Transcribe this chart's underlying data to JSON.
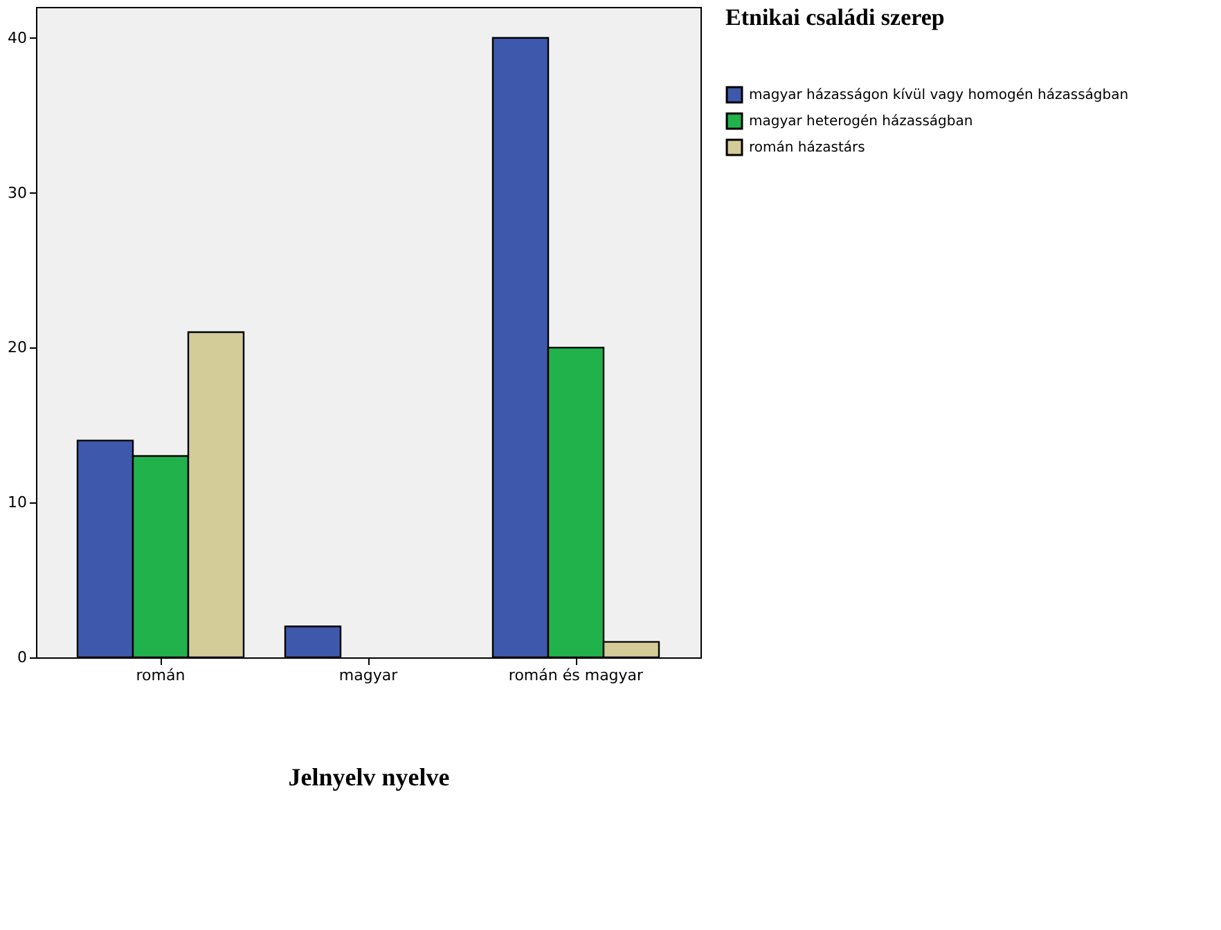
{
  "chart_data": {
    "type": "bar",
    "xlabel": "Jelnyelv nyelve",
    "legend_title": "Etnikai családi szerep",
    "categories": [
      "román",
      "magyar",
      "román és magyar"
    ],
    "series": [
      {
        "name": "magyar házasságon kívül vagy homogén házasságban",
        "color": "#3e58ac",
        "values": [
          14,
          2,
          40
        ]
      },
      {
        "name": "magyar heterogén házasságban",
        "color": "#22b24c",
        "values": [
          13,
          0,
          20
        ]
      },
      {
        "name": "román házastárs",
        "color": "#d4cc98",
        "values": [
          21,
          0,
          1
        ]
      }
    ],
    "ylim": [
      0,
      42
    ],
    "yticks": [
      0,
      10,
      20,
      30,
      40
    ],
    "grid": false,
    "legend": "right"
  }
}
